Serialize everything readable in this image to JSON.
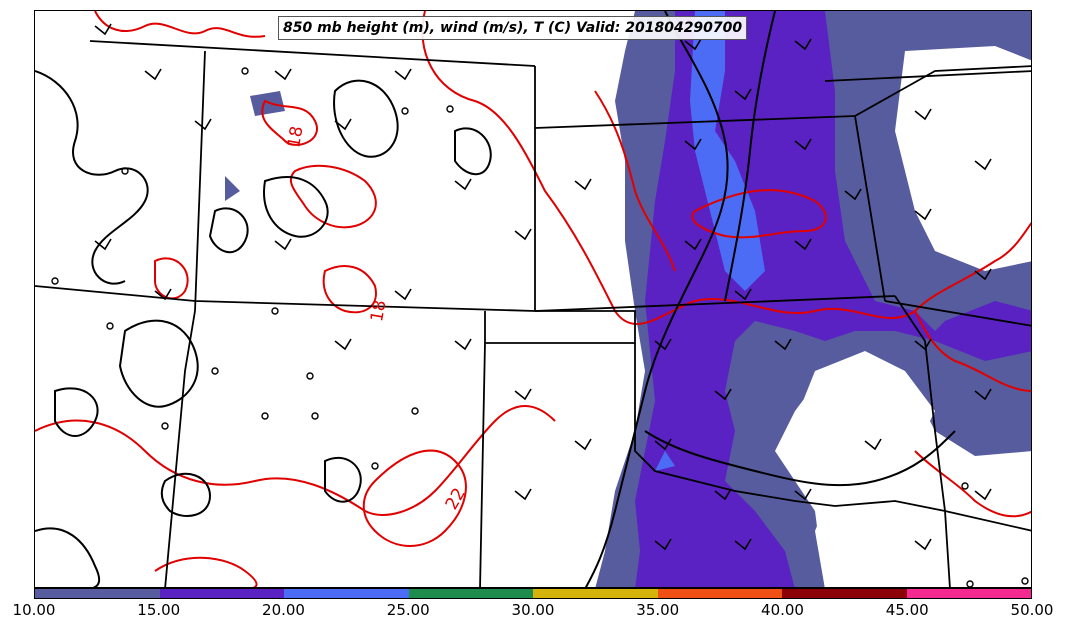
{
  "title": "850 mb height (m), wind (m/s), T (C) Valid: 201804290700",
  "contour_labels": [
    "18",
    "18",
    "22"
  ],
  "colorbar": {
    "ticks": [
      "10.00",
      "15.00",
      "20.00",
      "25.00",
      "30.00",
      "35.00",
      "40.00",
      "45.00",
      "50.00"
    ],
    "colors": [
      "#565c9e",
      "#5a22c2",
      "#4d6cf5",
      "#1e8c4d",
      "#d4b40a",
      "#f05014",
      "#8c0008",
      "#f42a90"
    ]
  },
  "layers": {
    "wind_speed_fill": "wind speed (m/s)",
    "temperature_contours": "#e00000",
    "height_contours": "#000000",
    "state_borders": "#000000"
  }
}
